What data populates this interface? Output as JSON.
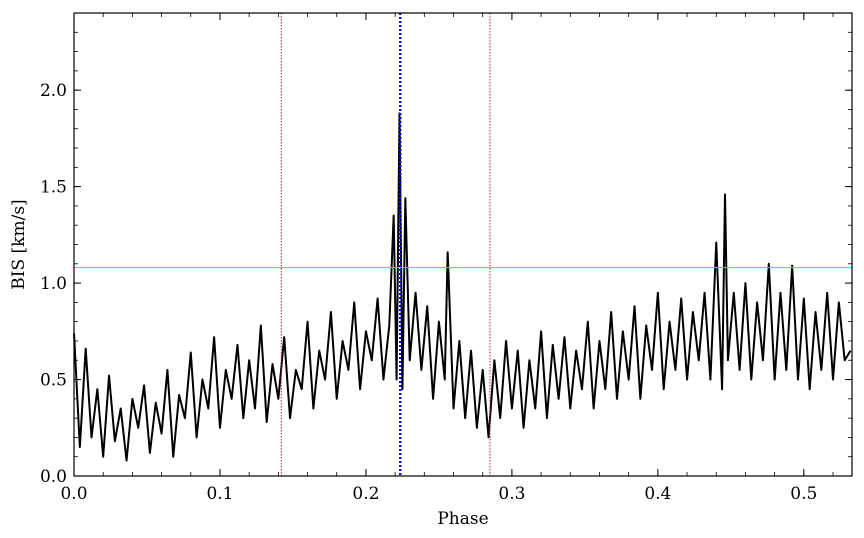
{
  "chart_data": {
    "type": "line",
    "title": "",
    "xlabel": "Phase",
    "ylabel": "BIS [km/s]",
    "xlim": [
      0.0,
      0.533
    ],
    "ylim": [
      0.0,
      2.4
    ],
    "x_ticks": [
      0.0,
      0.1,
      0.2,
      0.3,
      0.4,
      0.5
    ],
    "x_tick_labels": [
      "0.0",
      "0.1",
      "0.2",
      "0.3",
      "0.4",
      "0.5"
    ],
    "y_ticks": [
      0.0,
      0.5,
      1.0,
      1.5,
      2.0
    ],
    "y_tick_labels": [
      "0.0",
      "0.5",
      "1.0",
      "1.5",
      "2.0"
    ],
    "grid": false,
    "series": [
      {
        "color": "#000000",
        "x": [
          0.0,
          0.004,
          0.008,
          0.012,
          0.016,
          0.02,
          0.024,
          0.028,
          0.032,
          0.036,
          0.04,
          0.044,
          0.048,
          0.052,
          0.056,
          0.06,
          0.064,
          0.068,
          0.072,
          0.076,
          0.08,
          0.084,
          0.088,
          0.092,
          0.096,
          0.1,
          0.104,
          0.108,
          0.112,
          0.116,
          0.12,
          0.124,
          0.128,
          0.132,
          0.136,
          0.14,
          0.144,
          0.148,
          0.152,
          0.156,
          0.16,
          0.164,
          0.168,
          0.172,
          0.176,
          0.18,
          0.184,
          0.188,
          0.192,
          0.196,
          0.2,
          0.204,
          0.208,
          0.212,
          0.216,
          0.219,
          0.221,
          0.223,
          0.225,
          0.227,
          0.23,
          0.234,
          0.238,
          0.242,
          0.246,
          0.25,
          0.254,
          0.256,
          0.26,
          0.264,
          0.268,
          0.272,
          0.276,
          0.28,
          0.284,
          0.288,
          0.292,
          0.296,
          0.3,
          0.304,
          0.308,
          0.312,
          0.316,
          0.32,
          0.324,
          0.328,
          0.332,
          0.336,
          0.34,
          0.344,
          0.348,
          0.352,
          0.356,
          0.36,
          0.364,
          0.368,
          0.372,
          0.376,
          0.38,
          0.384,
          0.388,
          0.392,
          0.396,
          0.4,
          0.404,
          0.408,
          0.412,
          0.416,
          0.42,
          0.424,
          0.428,
          0.432,
          0.436,
          0.44,
          0.444,
          0.446,
          0.448,
          0.452,
          0.456,
          0.46,
          0.464,
          0.468,
          0.472,
          0.476,
          0.48,
          0.484,
          0.488,
          0.492,
          0.496,
          0.5,
          0.504,
          0.508,
          0.512,
          0.516,
          0.52,
          0.524,
          0.528,
          0.532
        ],
        "y": [
          0.74,
          0.15,
          0.66,
          0.2,
          0.45,
          0.1,
          0.52,
          0.18,
          0.35,
          0.08,
          0.4,
          0.25,
          0.47,
          0.12,
          0.38,
          0.22,
          0.55,
          0.1,
          0.42,
          0.3,
          0.64,
          0.2,
          0.5,
          0.35,
          0.72,
          0.25,
          0.55,
          0.4,
          0.68,
          0.3,
          0.6,
          0.35,
          0.78,
          0.28,
          0.58,
          0.4,
          0.72,
          0.3,
          0.55,
          0.45,
          0.8,
          0.35,
          0.65,
          0.5,
          0.85,
          0.4,
          0.7,
          0.55,
          0.9,
          0.45,
          0.75,
          0.6,
          0.92,
          0.5,
          0.78,
          1.35,
          0.5,
          1.88,
          0.45,
          1.44,
          0.6,
          0.95,
          0.55,
          0.88,
          0.4,
          0.8,
          0.5,
          1.16,
          0.35,
          0.7,
          0.3,
          0.65,
          0.25,
          0.55,
          0.2,
          0.6,
          0.3,
          0.7,
          0.35,
          0.65,
          0.25,
          0.6,
          0.35,
          0.75,
          0.3,
          0.68,
          0.4,
          0.72,
          0.35,
          0.65,
          0.45,
          0.8,
          0.35,
          0.7,
          0.45,
          0.85,
          0.4,
          0.75,
          0.5,
          0.88,
          0.4,
          0.78,
          0.55,
          0.95,
          0.45,
          0.8,
          0.55,
          0.92,
          0.5,
          0.85,
          0.6,
          0.95,
          0.5,
          1.21,
          0.45,
          1.46,
          0.6,
          0.95,
          0.55,
          1.0,
          0.5,
          0.9,
          0.6,
          1.1,
          0.5,
          0.95,
          0.55,
          1.09,
          0.5,
          0.92,
          0.45,
          0.85,
          0.55,
          0.95,
          0.5,
          0.9,
          0.6,
          0.65
        ]
      }
    ],
    "reference_lines": [
      {
        "orientation": "horizontal",
        "y": 1.08,
        "color": "#00e5ff",
        "style": "solid"
      },
      {
        "orientation": "vertical",
        "x": 0.2235,
        "color": "#1010d0",
        "style": "dotted"
      },
      {
        "orientation": "vertical",
        "x": 0.142,
        "color": "#b0203a",
        "style": "dotted"
      },
      {
        "orientation": "vertical",
        "x": 0.285,
        "color": "#b0203a",
        "style": "dotted"
      }
    ]
  }
}
